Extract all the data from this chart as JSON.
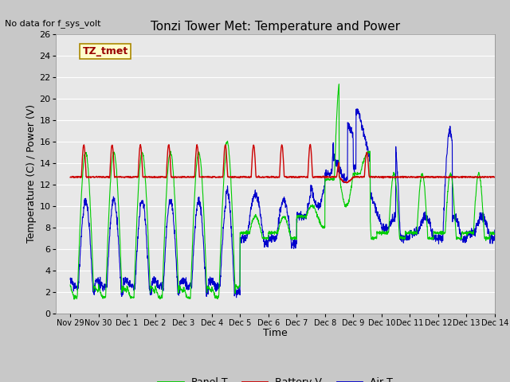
{
  "title": "Tonzi Tower Met: Temperature and Power",
  "no_data_text": "No data for f_sys_volt",
  "ylabel": "Temperature (C) / Power (V)",
  "xlabel": "Time",
  "annotation": "TZ_tmet",
  "ylim": [
    0,
    26
  ],
  "yticks": [
    0,
    2,
    4,
    6,
    8,
    10,
    12,
    14,
    16,
    18,
    20,
    22,
    24,
    26
  ],
  "xtick_labels": [
    "Nov 29",
    "Nov 30",
    "Dec 1",
    "Dec 2",
    "Dec 3",
    "Dec 4",
    "Dec 5",
    "Dec 6",
    "Dec 7",
    "Dec 8",
    "Dec 9",
    "Dec 10",
    "Dec 11",
    "Dec 12",
    "Dec 13",
    "Dec 14"
  ],
  "panel_color": "#00cc00",
  "battery_color": "#cc0000",
  "air_color": "#0000cc",
  "bg_color": "#e8e8e8",
  "grid_color": "#ffffff",
  "title_fontsize": 11,
  "label_fontsize": 9,
  "tick_fontsize": 8,
  "annot_fontsize": 9
}
